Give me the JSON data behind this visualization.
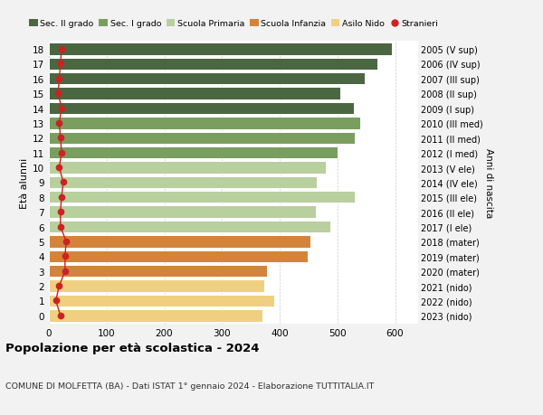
{
  "ages": [
    18,
    17,
    16,
    15,
    14,
    13,
    12,
    11,
    10,
    9,
    8,
    7,
    6,
    5,
    4,
    3,
    2,
    1,
    0
  ],
  "right_labels": [
    "2005 (V sup)",
    "2006 (IV sup)",
    "2007 (III sup)",
    "2008 (II sup)",
    "2009 (I sup)",
    "2010 (III med)",
    "2011 (II med)",
    "2012 (I med)",
    "2013 (V ele)",
    "2014 (IV ele)",
    "2015 (III ele)",
    "2016 (II ele)",
    "2017 (I ele)",
    "2018 (mater)",
    "2019 (mater)",
    "2020 (mater)",
    "2021 (nido)",
    "2022 (nido)",
    "2023 (nido)"
  ],
  "bar_values": [
    595,
    570,
    548,
    505,
    528,
    540,
    530,
    500,
    480,
    465,
    530,
    462,
    488,
    453,
    448,
    378,
    373,
    390,
    370
  ],
  "stranieri_values": [
    22,
    20,
    18,
    16,
    22,
    18,
    20,
    22,
    18,
    25,
    22,
    20,
    20,
    30,
    28,
    28,
    18,
    12,
    20
  ],
  "bar_colors": [
    "#4a6741",
    "#4a6741",
    "#4a6741",
    "#4a6741",
    "#4a6741",
    "#7a9e5f",
    "#7a9e5f",
    "#7a9e5f",
    "#b8cf9e",
    "#b8cf9e",
    "#b8cf9e",
    "#b8cf9e",
    "#b8cf9e",
    "#d4843a",
    "#d4843a",
    "#d4843a",
    "#f0d080",
    "#f0d080",
    "#f0d080"
  ],
  "legend_labels": [
    "Sec. II grado",
    "Sec. I grado",
    "Scuola Primaria",
    "Scuola Infanzia",
    "Asilo Nido",
    "Stranieri"
  ],
  "legend_colors": [
    "#4a6741",
    "#7a9e5f",
    "#b8cf9e",
    "#d4843a",
    "#f0d080",
    "#cc2222"
  ],
  "stranieri_color": "#cc2222",
  "ylabel": "Età alunni",
  "right_ylabel": "Anni di nascita",
  "title": "Popolazione per età scolastica - 2024",
  "subtitle": "COMUNE DI MOLFETTA (BA) - Dati ISTAT 1° gennaio 2024 - Elaborazione TUTTITALIA.IT",
  "xlim": [
    0,
    640
  ],
  "xticks": [
    0,
    100,
    200,
    300,
    400,
    500,
    600
  ],
  "bg_color": "#f2f2f2",
  "bar_bg_color": "#ffffff"
}
